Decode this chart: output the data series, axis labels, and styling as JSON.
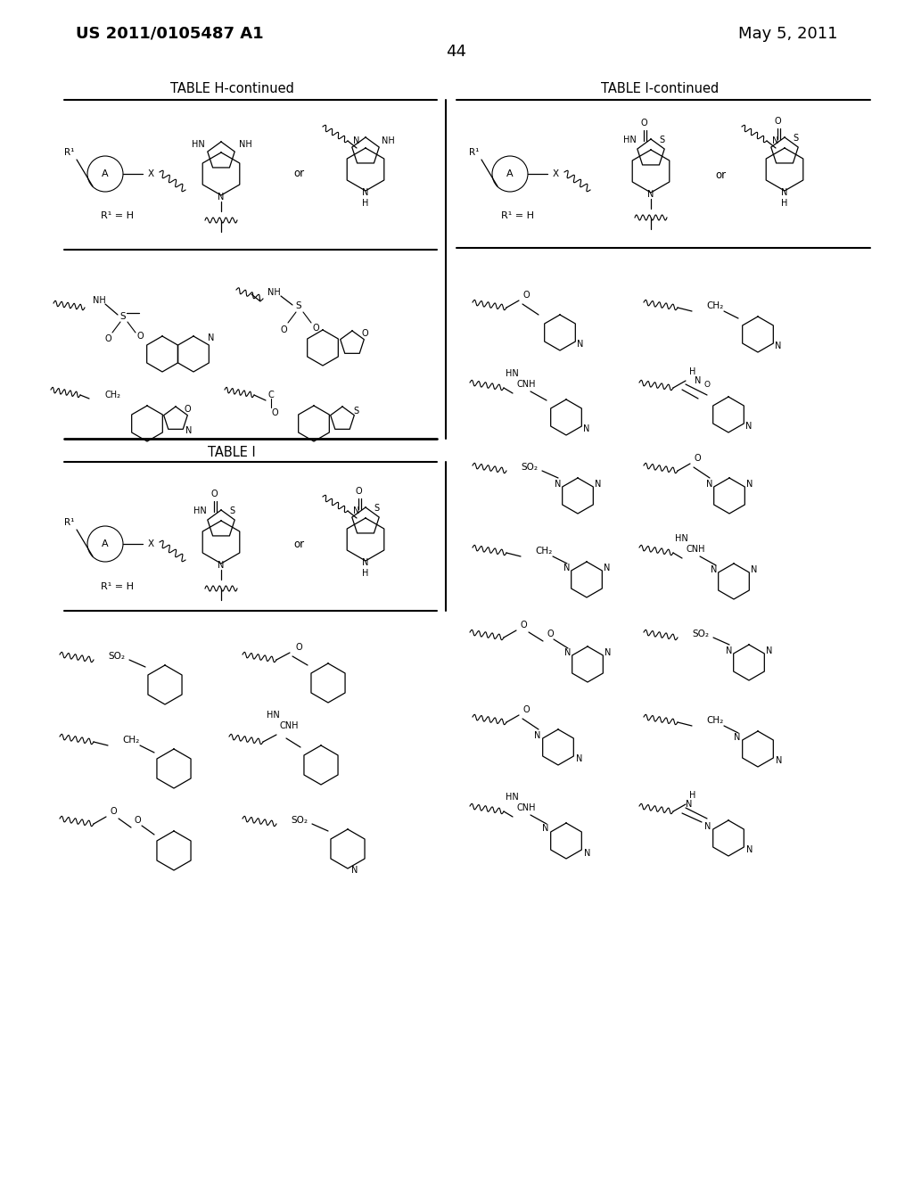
{
  "bg_color": "#ffffff",
  "header_left": "US 2011/0105487 A1",
  "header_right": "May 5, 2011",
  "page_number": "44",
  "table_h_title": "TABLE H-continued",
  "table_i_title": "TABLE I-continued",
  "table_i2_title": "TABLE I"
}
